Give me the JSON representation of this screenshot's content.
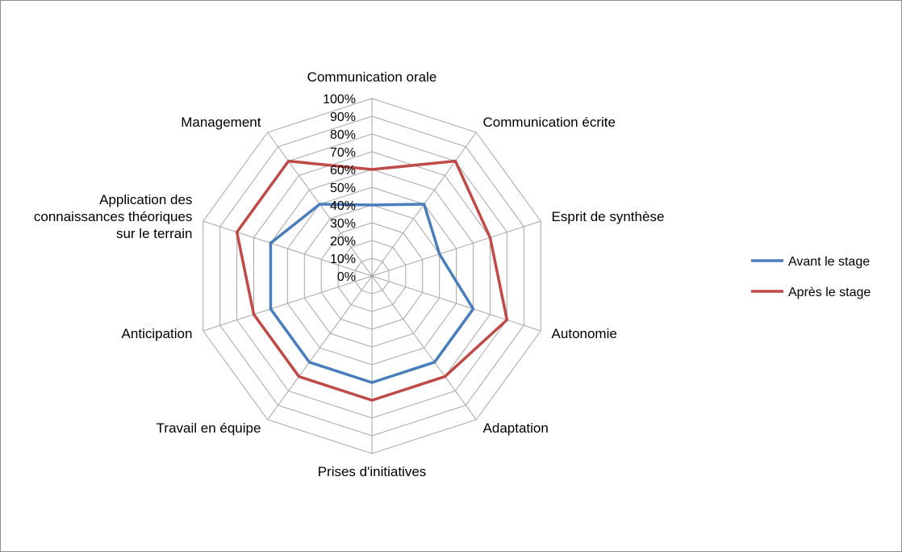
{
  "chart_data": {
    "type": "radar",
    "categories": [
      "Communication orale",
      "Communication écrite",
      "Esprit de synthèse",
      "Autonomie",
      "Adaptation",
      "Prises d'initiatives",
      "Travail en équipe",
      "Anticipation",
      "Application des connaissances théoriques sur le terrain",
      "Management"
    ],
    "category_lines": [
      [
        "Communication orale"
      ],
      [
        "Communication écrite"
      ],
      [
        "Esprit de synthèse"
      ],
      [
        "Autonomie"
      ],
      [
        "Adaptation"
      ],
      [
        "Prises d'initiatives"
      ],
      [
        "Travail en équipe"
      ],
      [
        "Anticipation"
      ],
      [
        "Application des",
        "connaissances théoriques",
        "sur le terrain"
      ],
      [
        "Management"
      ]
    ],
    "ticks": [
      "0%",
      "10%",
      "20%",
      "30%",
      "40%",
      "50%",
      "60%",
      "70%",
      "80%",
      "90%",
      "100%"
    ],
    "ylim": [
      0,
      100
    ],
    "grid": true,
    "legend_position": "right",
    "series": [
      {
        "name": "Avant le stage",
        "color": "#4a7ebb",
        "values": [
          40,
          50,
          40,
          60,
          60,
          60,
          60,
          60,
          60,
          50
        ]
      },
      {
        "name": "Après le stage",
        "color": "#be4b48",
        "values": [
          60,
          80,
          70,
          80,
          70,
          70,
          70,
          70,
          80,
          80
        ]
      }
    ]
  }
}
